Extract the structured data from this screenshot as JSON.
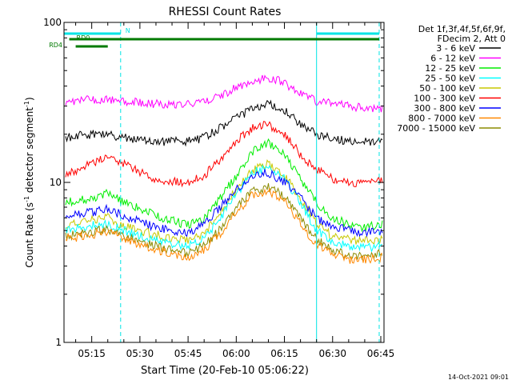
{
  "chart_data": {
    "type": "line",
    "title": "RHESSI Count Rates",
    "xlabel": "Start Time (20-Feb-10 05:06:22)",
    "ylabel_main": "Count Rate (s",
    "ylabel_sup1": "-1",
    "ylabel_mid": " detector segment",
    "ylabel_sup2": "-1",
    "ylabel_end": ")",
    "y_scale": "log",
    "ylim": [
      1,
      100
    ],
    "xlim": [
      "05:06:22",
      "06:46:00"
    ],
    "x_ticks": [
      "05:15",
      "05:30",
      "05:45",
      "06:00",
      "06:15",
      "06:30",
      "06:45"
    ],
    "y_ticks": [
      "1",
      "10",
      "100"
    ],
    "timestamp": "14-Oct-2021 09:01",
    "legend_header": [
      "Det 1f,3f,4f,5f,6f,9f,",
      "FDecim 2, Att 0"
    ],
    "flags": [
      {
        "label": "N",
        "color": "#00e5e5",
        "segments": [
          [
            "05:06:22",
            "05:24:00"
          ],
          [
            "06:25:00",
            "06:44:30"
          ]
        ]
      },
      {
        "label": "RD0",
        "color": "#007a00",
        "segments": [
          [
            "05:08:00",
            "06:44:30"
          ]
        ]
      },
      {
        "label": "RD4",
        "color": "#007a00",
        "segments": [
          [
            "05:10:00",
            "05:20:00"
          ]
        ]
      }
    ],
    "vertical_lines": [
      {
        "time": "05:06:22",
        "style": "solid"
      },
      {
        "time": "05:24:00",
        "style": "dashed"
      },
      {
        "time": "06:25:00",
        "style": "solid"
      },
      {
        "time": "06:44:30",
        "style": "dashed"
      }
    ],
    "x": [
      "05:06",
      "05:15",
      "05:20",
      "05:25",
      "05:35",
      "05:45",
      "05:50",
      "05:55",
      "06:00",
      "06:05",
      "06:10",
      "06:15",
      "06:20",
      "06:25",
      "06:30",
      "06:35",
      "06:40",
      "06:45"
    ],
    "series": [
      {
        "name": "3 - 6 keV",
        "color": "#000000",
        "values": [
          19,
          20,
          20,
          19,
          18,
          18,
          19,
          22,
          25,
          29,
          31,
          28,
          23,
          20,
          19,
          18,
          18,
          18
        ]
      },
      {
        "name": "6 - 12 keV",
        "color": "#ff00ff",
        "values": [
          32,
          33,
          33,
          32,
          31,
          31,
          32,
          35,
          39,
          43,
          45,
          42,
          36,
          32,
          31,
          30,
          29,
          29
        ]
      },
      {
        "name": "12 - 25 keV",
        "color": "#00ee00",
        "values": [
          7.5,
          8,
          8.5,
          7.5,
          6.2,
          5.4,
          6,
          8,
          11,
          15.5,
          17.5,
          15,
          10.5,
          7.5,
          6,
          5.5,
          5.2,
          5.5
        ]
      },
      {
        "name": "25 - 50 keV",
        "color": "#00ffff",
        "values": [
          5,
          5.4,
          5.5,
          5,
          4.3,
          4,
          4.4,
          6,
          8.5,
          11.5,
          12.5,
          10.5,
          7.5,
          5,
          4.2,
          4,
          3.9,
          4
        ]
      },
      {
        "name": "50 - 100 keV",
        "color": "#c8c800",
        "values": [
          5.3,
          5.8,
          6,
          5.3,
          4.7,
          4.3,
          4.8,
          6.5,
          9,
          12,
          13,
          11,
          8,
          5.5,
          4.6,
          4.4,
          4.3,
          4.4
        ]
      },
      {
        "name": "100 - 300 keV",
        "color": "#ff0000",
        "values": [
          11,
          13,
          15,
          13,
          10.5,
          10,
          11,
          14,
          18,
          22,
          23,
          20,
          15,
          12,
          10.5,
          10,
          9.8,
          10.5
        ]
      },
      {
        "name": "300 - 800 keV",
        "color": "#0000ff",
        "values": [
          6.2,
          6.5,
          6.8,
          6.2,
          5.2,
          4.8,
          5.5,
          7,
          9,
          11,
          11.5,
          10,
          8,
          6,
          5.3,
          5,
          4.9,
          5
        ]
      },
      {
        "name": "800 - 7000 keV",
        "color": "#ff8800",
        "values": [
          4.4,
          4.7,
          4.9,
          4.4,
          3.8,
          3.4,
          3.8,
          4.8,
          6.5,
          8.3,
          8.8,
          7.8,
          5.5,
          4.1,
          3.6,
          3.3,
          3.3,
          3.4
        ]
      },
      {
        "name": "7000 - 15000 keV",
        "color": "#8b8b00",
        "values": [
          4.6,
          4.9,
          5.1,
          4.6,
          4.0,
          3.6,
          4.0,
          5.1,
          6.9,
          8.8,
          9.3,
          8.2,
          5.9,
          4.4,
          3.8,
          3.5,
          3.5,
          3.6
        ]
      }
    ]
  }
}
